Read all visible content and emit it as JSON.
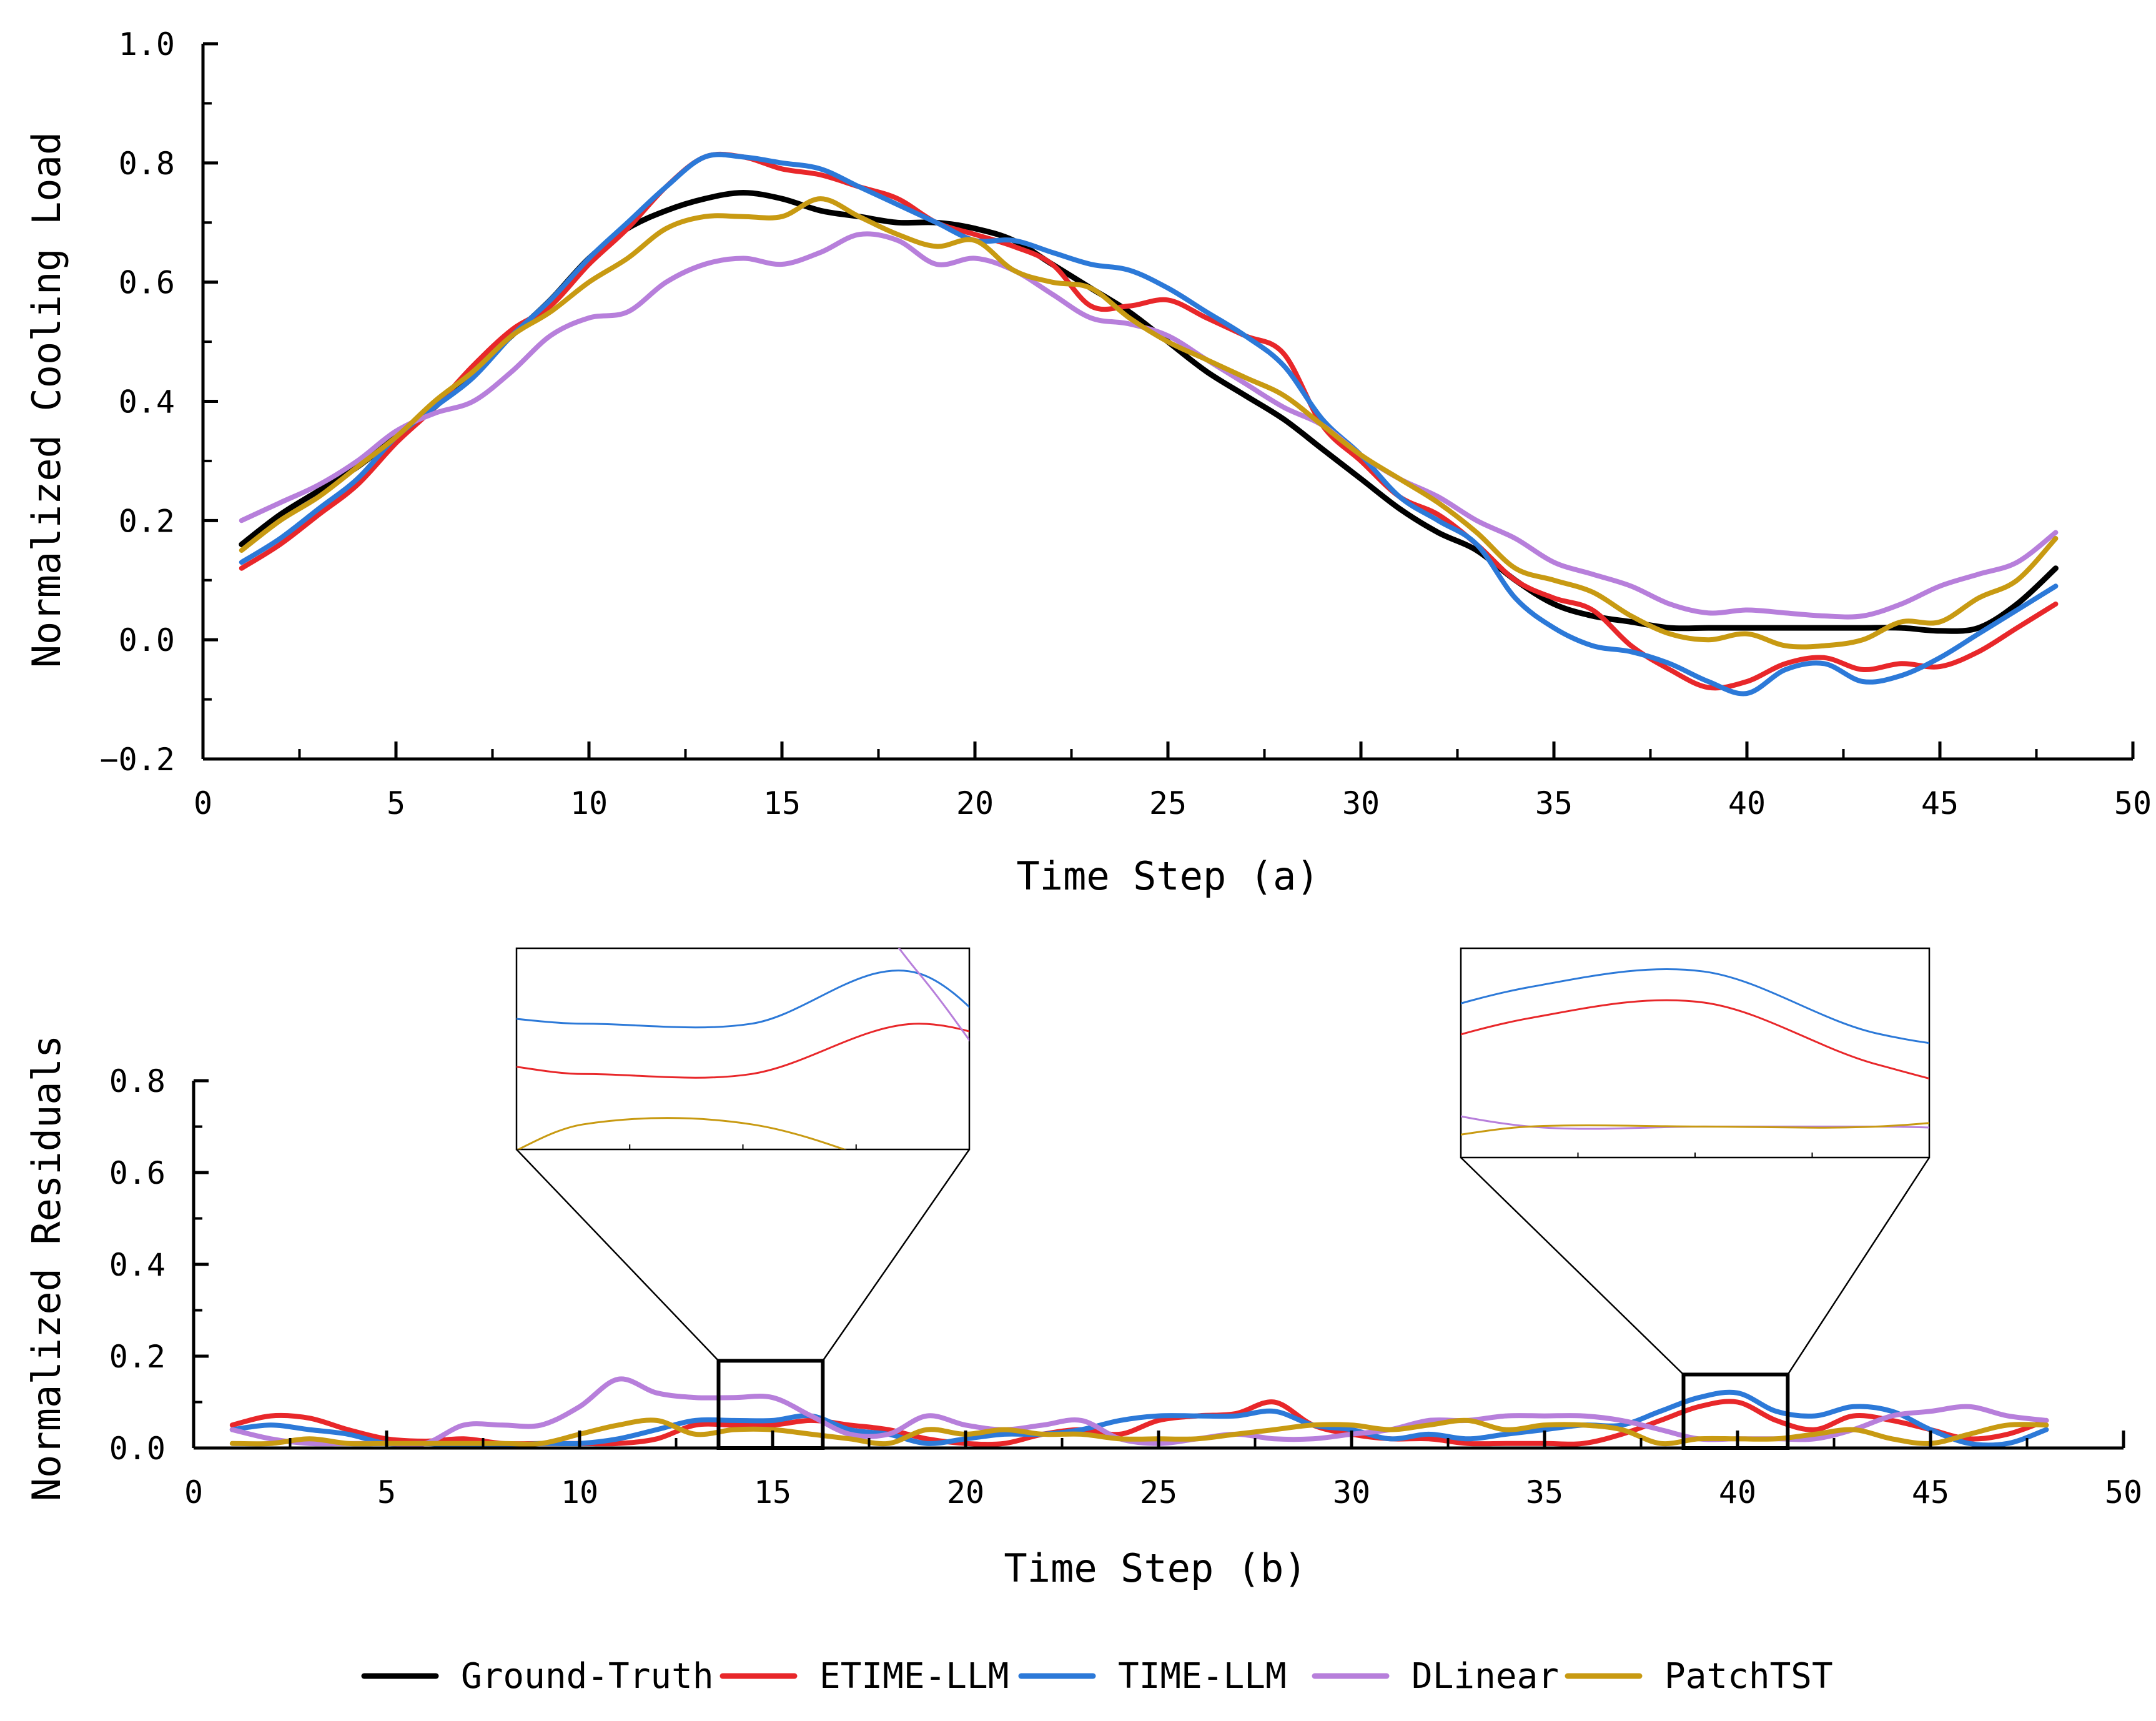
{
  "colors": {
    "Ground-Truth": "#000000",
    "ETIME-LLM": "#e8272a",
    "TIME-LLM": "#2c79d8",
    "DLinear": "#b77fdb",
    "PatchTST": "#c89a12"
  },
  "legend": [
    "Ground-Truth",
    "ETIME-LLM",
    "TIME-LLM",
    "DLinear",
    "PatchTST"
  ],
  "chart_data": [
    {
      "type": "line",
      "xlabel": "Time Step (a)",
      "ylabel": "Normalized Cooling Load",
      "xlim": [
        0,
        50
      ],
      "ylim": [
        -0.2,
        1.0
      ],
      "xticks": [
        "0",
        "5",
        "10",
        "15",
        "20",
        "25",
        "30",
        "35",
        "40",
        "45",
        "50"
      ],
      "yticks": [
        "−0.2",
        "0.0",
        "0.2",
        "0.4",
        "0.6",
        "0.8",
        "1.0"
      ],
      "x": [
        1,
        2,
        3,
        4,
        5,
        6,
        7,
        8,
        9,
        10,
        11,
        12,
        13,
        14,
        15,
        16,
        17,
        18,
        19,
        20,
        21,
        22,
        23,
        24,
        25,
        26,
        27,
        28,
        29,
        30,
        31,
        32,
        33,
        34,
        35,
        36,
        37,
        38,
        39,
        40,
        41,
        42,
        43,
        44,
        45,
        46,
        47,
        48
      ],
      "series": [
        {
          "name": "Ground-Truth",
          "values": [
            0.16,
            0.21,
            0.25,
            0.29,
            0.34,
            0.39,
            0.45,
            0.51,
            0.57,
            0.64,
            0.69,
            0.72,
            0.74,
            0.75,
            0.74,
            0.72,
            0.71,
            0.7,
            0.7,
            0.69,
            0.67,
            0.63,
            0.59,
            0.55,
            0.5,
            0.45,
            0.41,
            0.37,
            0.32,
            0.27,
            0.22,
            0.18,
            0.15,
            0.1,
            0.06,
            0.04,
            0.03,
            0.02,
            0.02,
            0.02,
            0.02,
            0.02,
            0.02,
            0.02,
            0.015,
            0.02,
            0.06,
            0.12
          ]
        },
        {
          "name": "ETIME-LLM",
          "values": [
            0.12,
            0.16,
            0.21,
            0.26,
            0.33,
            0.39,
            0.46,
            0.52,
            0.56,
            0.63,
            0.69,
            0.76,
            0.81,
            0.81,
            0.79,
            0.78,
            0.76,
            0.74,
            0.7,
            0.68,
            0.66,
            0.63,
            0.56,
            0.56,
            0.57,
            0.54,
            0.51,
            0.48,
            0.36,
            0.3,
            0.24,
            0.21,
            0.16,
            0.1,
            0.07,
            0.05,
            -0.01,
            -0.05,
            -0.08,
            -0.07,
            -0.04,
            -0.03,
            -0.05,
            -0.04,
            -0.045,
            -0.02,
            0.02,
            0.06
          ]
        },
        {
          "name": "TIME-LLM",
          "values": [
            0.13,
            0.17,
            0.22,
            0.27,
            0.34,
            0.39,
            0.44,
            0.51,
            0.57,
            0.64,
            0.7,
            0.76,
            0.81,
            0.81,
            0.8,
            0.79,
            0.76,
            0.73,
            0.7,
            0.67,
            0.67,
            0.65,
            0.63,
            0.62,
            0.59,
            0.55,
            0.51,
            0.46,
            0.37,
            0.31,
            0.24,
            0.2,
            0.16,
            0.07,
            0.02,
            -0.01,
            -0.02,
            -0.04,
            -0.07,
            -0.09,
            -0.05,
            -0.04,
            -0.07,
            -0.06,
            -0.03,
            0.01,
            0.05,
            0.09
          ]
        },
        {
          "name": "DLinear",
          "values": [
            0.2,
            0.23,
            0.26,
            0.3,
            0.35,
            0.38,
            0.4,
            0.45,
            0.51,
            0.54,
            0.55,
            0.6,
            0.63,
            0.64,
            0.63,
            0.65,
            0.68,
            0.67,
            0.63,
            0.64,
            0.62,
            0.58,
            0.54,
            0.53,
            0.51,
            0.47,
            0.43,
            0.39,
            0.36,
            0.31,
            0.27,
            0.24,
            0.2,
            0.17,
            0.13,
            0.11,
            0.09,
            0.06,
            0.045,
            0.05,
            0.045,
            0.04,
            0.04,
            0.06,
            0.09,
            0.11,
            0.13,
            0.18
          ]
        },
        {
          "name": "PatchTST",
          "values": [
            0.15,
            0.2,
            0.24,
            0.29,
            0.34,
            0.4,
            0.45,
            0.51,
            0.55,
            0.6,
            0.64,
            0.69,
            0.71,
            0.71,
            0.71,
            0.74,
            0.71,
            0.68,
            0.66,
            0.67,
            0.62,
            0.6,
            0.59,
            0.54,
            0.5,
            0.47,
            0.44,
            0.41,
            0.36,
            0.31,
            0.27,
            0.23,
            0.18,
            0.12,
            0.1,
            0.08,
            0.04,
            0.01,
            0.0,
            0.01,
            -0.01,
            -0.01,
            0.0,
            0.03,
            0.03,
            0.07,
            0.1,
            0.17
          ]
        }
      ]
    },
    {
      "type": "line",
      "xlabel": "Time Step (b)",
      "ylabel": "Normalized Residuals",
      "xlim": [
        0,
        50
      ],
      "ylim": [
        0.0,
        0.8
      ],
      "xticks": [
        "0",
        "5",
        "10",
        "15",
        "20",
        "25",
        "30",
        "35",
        "40",
        "45",
        "50"
      ],
      "yticks": [
        "0.0",
        "0.2",
        "0.4",
        "0.6",
        "0.8"
      ],
      "x": [
        1,
        2,
        3,
        4,
        5,
        6,
        7,
        8,
        9,
        10,
        11,
        12,
        13,
        14,
        15,
        16,
        17,
        18,
        19,
        20,
        21,
        22,
        23,
        24,
        25,
        26,
        27,
        28,
        29,
        30,
        31,
        32,
        33,
        34,
        35,
        36,
        37,
        38,
        39,
        40,
        41,
        42,
        43,
        44,
        45,
        46,
        47,
        48
      ],
      "series": [
        {
          "name": "ETIME-LLM",
          "values": [
            0.05,
            0.07,
            0.065,
            0.04,
            0.02,
            0.015,
            0.02,
            0.01,
            0.01,
            0.01,
            0.01,
            0.02,
            0.05,
            0.05,
            0.05,
            0.06,
            0.05,
            0.04,
            0.02,
            0.01,
            0.01,
            0.03,
            0.04,
            0.03,
            0.06,
            0.07,
            0.075,
            0.1,
            0.05,
            0.03,
            0.02,
            0.02,
            0.01,
            0.01,
            0.01,
            0.01,
            0.03,
            0.06,
            0.09,
            0.1,
            0.06,
            0.04,
            0.07,
            0.06,
            0.04,
            0.02,
            0.03,
            0.06
          ]
        },
        {
          "name": "TIME-LLM",
          "values": [
            0.04,
            0.05,
            0.04,
            0.03,
            0.01,
            0.01,
            0.005,
            0.005,
            0.01,
            0.01,
            0.02,
            0.04,
            0.06,
            0.06,
            0.06,
            0.07,
            0.04,
            0.03,
            0.01,
            0.02,
            0.03,
            0.03,
            0.04,
            0.06,
            0.07,
            0.07,
            0.07,
            0.08,
            0.05,
            0.04,
            0.02,
            0.03,
            0.02,
            0.03,
            0.04,
            0.05,
            0.05,
            0.08,
            0.11,
            0.12,
            0.08,
            0.07,
            0.09,
            0.08,
            0.04,
            0.01,
            0.01,
            0.04
          ]
        },
        {
          "name": "DLinear",
          "values": [
            0.04,
            0.02,
            0.01,
            0.01,
            0.01,
            0.01,
            0.05,
            0.05,
            0.05,
            0.09,
            0.15,
            0.12,
            0.11,
            0.11,
            0.11,
            0.07,
            0.03,
            0.03,
            0.07,
            0.05,
            0.04,
            0.05,
            0.06,
            0.02,
            0.01,
            0.02,
            0.03,
            0.02,
            0.02,
            0.03,
            0.04,
            0.06,
            0.06,
            0.07,
            0.07,
            0.07,
            0.06,
            0.04,
            0.02,
            0.02,
            0.02,
            0.02,
            0.04,
            0.07,
            0.08,
            0.09,
            0.07,
            0.06
          ]
        },
        {
          "name": "PatchTST",
          "values": [
            0.01,
            0.01,
            0.02,
            0.01,
            0.01,
            0.01,
            0.01,
            0.01,
            0.01,
            0.03,
            0.05,
            0.06,
            0.03,
            0.04,
            0.04,
            0.03,
            0.02,
            0.01,
            0.04,
            0.03,
            0.04,
            0.03,
            0.03,
            0.02,
            0.02,
            0.02,
            0.03,
            0.04,
            0.05,
            0.05,
            0.04,
            0.05,
            0.06,
            0.04,
            0.05,
            0.05,
            0.04,
            0.01,
            0.02,
            0.02,
            0.02,
            0.03,
            0.04,
            0.02,
            0.01,
            0.03,
            0.05,
            0.05
          ]
        }
      ]
    }
  ]
}
